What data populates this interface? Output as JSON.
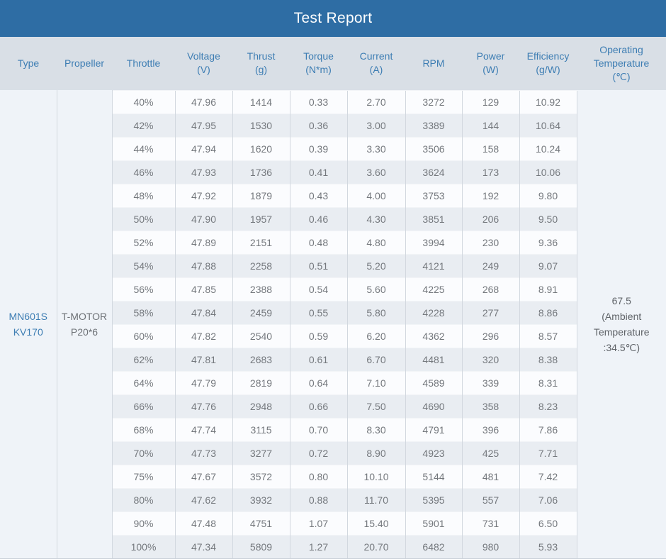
{
  "title": "Test Report",
  "colors": {
    "title_bar": "#2e6da4",
    "title_text": "#ffffff",
    "header_bg": "#d9dfe6",
    "header_text": "#3d7db3",
    "row_odd_bg": "#fbfcfe",
    "row_even_bg": "#e9edf2",
    "side_cell_bg": "#eff3f8",
    "data_text": "#74787d",
    "accent_text": "#3d7db3",
    "grid_line": "#d2d8df"
  },
  "columns": [
    {
      "label": "Type",
      "unit": ""
    },
    {
      "label": "Propeller",
      "unit": ""
    },
    {
      "label": "Throttle",
      "unit": ""
    },
    {
      "label": "Voltage",
      "unit": "(V)"
    },
    {
      "label": "Thrust",
      "unit": "(g)"
    },
    {
      "label": "Torque",
      "unit": "(N*m)"
    },
    {
      "label": "Current",
      "unit": "(A)"
    },
    {
      "label": "RPM",
      "unit": ""
    },
    {
      "label": "Power",
      "unit": "(W)"
    },
    {
      "label": "Efficiency",
      "unit": "(g/W)"
    },
    {
      "label": "Operating Temperature",
      "unit": "(℃)"
    }
  ],
  "type_lines": [
    "MN601S",
    "KV170"
  ],
  "propeller_lines": [
    "T-MOTOR",
    "P20*6"
  ],
  "operating_temperature_lines": [
    "67.5",
    "(Ambient",
    "Temperature",
    ":34.5℃)"
  ],
  "rows": [
    [
      "40%",
      "47.96",
      "1414",
      "0.33",
      "2.70",
      "3272",
      "129",
      "10.92"
    ],
    [
      "42%",
      "47.95",
      "1530",
      "0.36",
      "3.00",
      "3389",
      "144",
      "10.64"
    ],
    [
      "44%",
      "47.94",
      "1620",
      "0.39",
      "3.30",
      "3506",
      "158",
      "10.24"
    ],
    [
      "46%",
      "47.93",
      "1736",
      "0.41",
      "3.60",
      "3624",
      "173",
      "10.06"
    ],
    [
      "48%",
      "47.92",
      "1879",
      "0.43",
      "4.00",
      "3753",
      "192",
      "9.80"
    ],
    [
      "50%",
      "47.90",
      "1957",
      "0.46",
      "4.30",
      "3851",
      "206",
      "9.50"
    ],
    [
      "52%",
      "47.89",
      "2151",
      "0.48",
      "4.80",
      "3994",
      "230",
      "9.36"
    ],
    [
      "54%",
      "47.88",
      "2258",
      "0.51",
      "5.20",
      "4121",
      "249",
      "9.07"
    ],
    [
      "56%",
      "47.85",
      "2388",
      "0.54",
      "5.60",
      "4225",
      "268",
      "8.91"
    ],
    [
      "58%",
      "47.84",
      "2459",
      "0.55",
      "5.80",
      "4228",
      "277",
      "8.86"
    ],
    [
      "60%",
      "47.82",
      "2540",
      "0.59",
      "6.20",
      "4362",
      "296",
      "8.57"
    ],
    [
      "62%",
      "47.81",
      "2683",
      "0.61",
      "6.70",
      "4481",
      "320",
      "8.38"
    ],
    [
      "64%",
      "47.79",
      "2819",
      "0.64",
      "7.10",
      "4589",
      "339",
      "8.31"
    ],
    [
      "66%",
      "47.76",
      "2948",
      "0.66",
      "7.50",
      "4690",
      "358",
      "8.23"
    ],
    [
      "68%",
      "47.74",
      "3115",
      "0.70",
      "8.30",
      "4791",
      "396",
      "7.86"
    ],
    [
      "70%",
      "47.73",
      "3277",
      "0.72",
      "8.90",
      "4923",
      "425",
      "7.71"
    ],
    [
      "75%",
      "47.67",
      "3572",
      "0.80",
      "10.10",
      "5144",
      "481",
      "7.42"
    ],
    [
      "80%",
      "47.62",
      "3932",
      "0.88",
      "11.70",
      "5395",
      "557",
      "7.06"
    ],
    [
      "90%",
      "47.48",
      "4751",
      "1.07",
      "15.40",
      "5901",
      "731",
      "6.50"
    ],
    [
      "100%",
      "47.34",
      "5809",
      "1.27",
      "20.70",
      "6482",
      "980",
      "5.93"
    ]
  ]
}
